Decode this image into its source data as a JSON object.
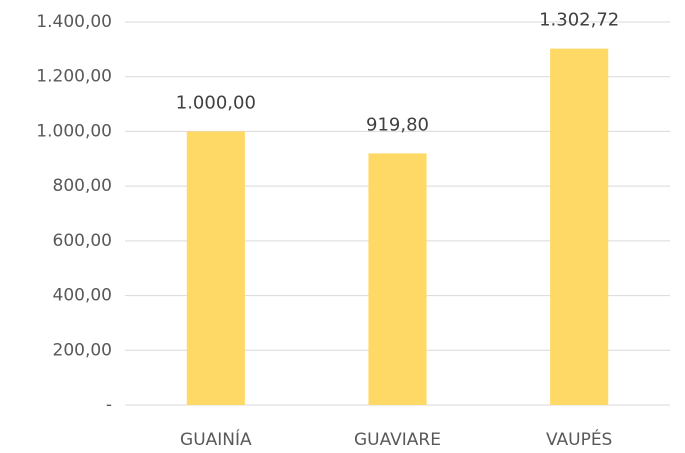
{
  "chart_data": {
    "type": "bar",
    "categories": [
      "GUAINÍA",
      "GUAVIARE",
      "VAUPÉS"
    ],
    "values": [
      1000,
      919.8,
      1302.72
    ],
    "value_labels": [
      "1.000,00",
      "919,80",
      "1.302,72"
    ],
    "color": "#ffd966",
    "ylim": [
      0,
      1400
    ],
    "yticks": [
      {
        "value": 0,
        "label": "-"
      },
      {
        "value": 200,
        "label": "200,00"
      },
      {
        "value": 400,
        "label": "400,00"
      },
      {
        "value": 600,
        "label": "600,00"
      },
      {
        "value": 800,
        "label": "800,00"
      },
      {
        "value": 1000,
        "label": "1.000,00"
      },
      {
        "value": 1200,
        "label": "1.200,00"
      },
      {
        "value": 1400,
        "label": "1.400,00"
      }
    ],
    "grid": true
  }
}
